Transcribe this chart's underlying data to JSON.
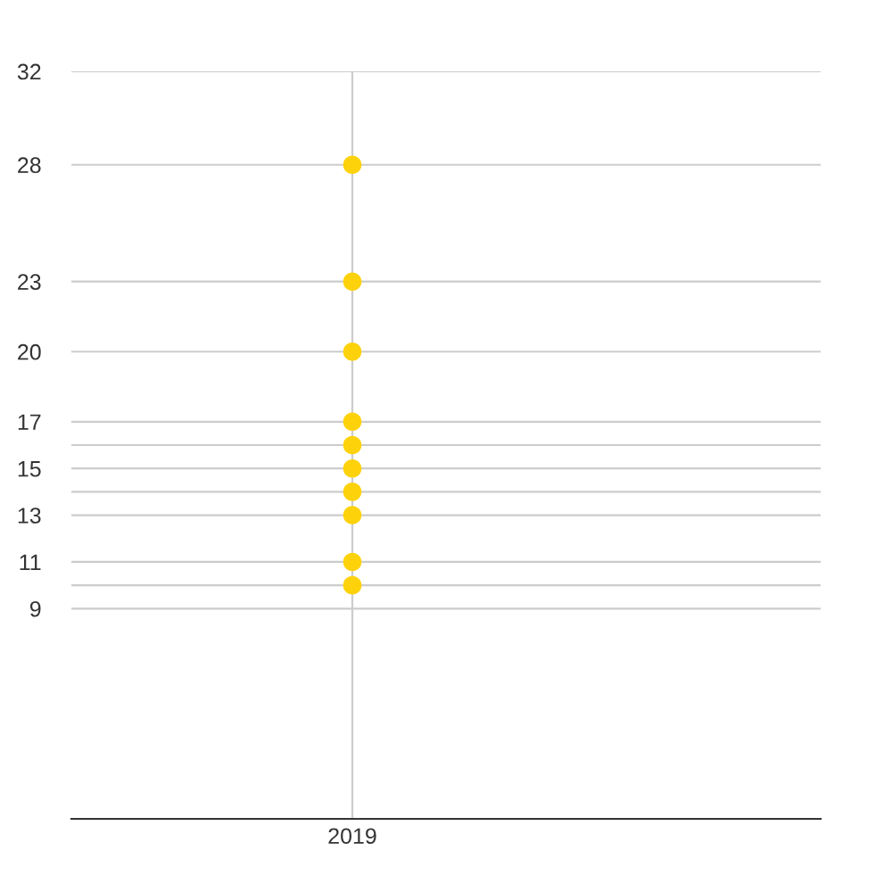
{
  "chart_data": {
    "type": "scatter",
    "categories": [
      "2019"
    ],
    "series": [
      {
        "color": "#fdd20a",
        "values": [
          28
        ]
      },
      {
        "color": "#fdd20a",
        "values": [
          23
        ]
      },
      {
        "color": "#fdd20a",
        "values": [
          20
        ]
      },
      {
        "color": "#fdd20a",
        "values": [
          17
        ]
      },
      {
        "color": "#fdd20a",
        "values": [
          16
        ]
      },
      {
        "color": "#fdd20a",
        "values": [
          15
        ]
      },
      {
        "color": "#fdd20a",
        "values": [
          14
        ]
      },
      {
        "color": "#fdd20a",
        "values": [
          13
        ]
      },
      {
        "color": "#fdd20a",
        "values": [
          11
        ]
      },
      {
        "color": "#fdd20a",
        "values": [
          10
        ]
      }
    ],
    "ylim": [
      0,
      32
    ],
    "yticks": [
      9,
      {
        "value": 10,
        "label": null
      },
      11,
      13,
      {
        "value": 14,
        "label": null
      },
      15,
      {
        "value": 16,
        "label": null
      },
      17,
      20,
      23,
      28,
      32
    ],
    "grid": true,
    "marker": "circle"
  }
}
